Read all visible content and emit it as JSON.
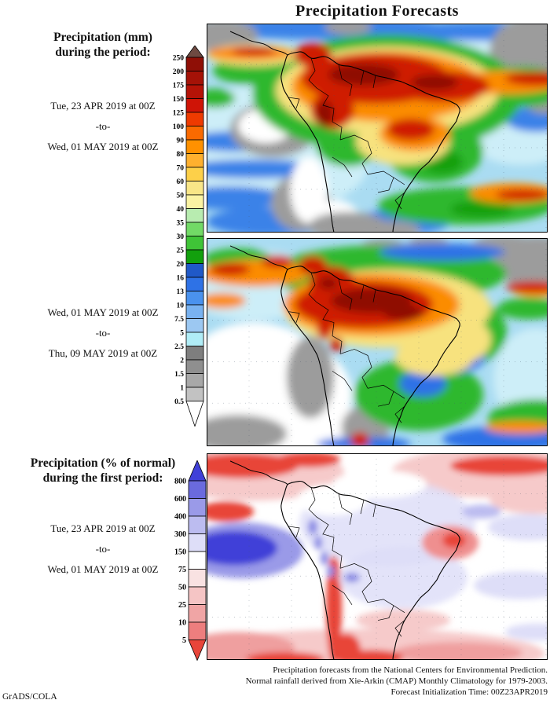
{
  "title": "Precipitation Forecasts",
  "attribution": "GrADS/COLA",
  "panel1": {
    "legend_title_line1": "Precipitation (mm)",
    "legend_title_line2": "during the period:",
    "period": {
      "start": "Tue, 23 APR 2019 at 00Z",
      "to": "-to-",
      "end": "Wed, 01 MAY 2019 at 00Z"
    }
  },
  "panel2": {
    "period": {
      "start": "Wed, 01 MAY 2019 at 00Z",
      "to": "-to-",
      "end": "Thu, 09 MAY 2019 at 00Z"
    }
  },
  "panel3": {
    "legend_title_line1": "Precipitation (% of normal)",
    "legend_title_line2": "during the first period:",
    "period": {
      "start": "Tue, 23 APR 2019 at 00Z",
      "to": "-to-",
      "end": "Wed, 01 MAY 2019 at 00Z"
    }
  },
  "colorbar_mm": {
    "labels": [
      "250",
      "200",
      "175",
      "150",
      "125",
      "100",
      "90",
      "80",
      "70",
      "60",
      "50",
      "40",
      "35",
      "30",
      "25",
      "20",
      "16",
      "13",
      "10",
      "7.5",
      "5",
      "2.5",
      "2",
      "1.5",
      "1",
      "0.5"
    ],
    "colors": [
      "#8f0f06",
      "#a51207",
      "#b51307",
      "#cf1406",
      "#ee3a00",
      "#fa6a00",
      "#ff9100",
      "#ffb02e",
      "#fdd049",
      "#f9e687",
      "#fbf3a3",
      "#b8ecb0",
      "#72da66",
      "#3fc437",
      "#12a00d",
      "#2059c8",
      "#2e72e6",
      "#4a92ee",
      "#79b2f0",
      "#9cc8f2",
      "#b0ecf6",
      "#7e7e7e",
      "#8f8f8f",
      "#a8a8a8",
      "#c2c2c2"
    ],
    "above_color": "#6e4a42",
    "below_color": "#ffffff"
  },
  "colorbar_pct": {
    "labels": [
      "800",
      "600",
      "400",
      "300",
      "150",
      "75",
      "50",
      "25",
      "10",
      "5"
    ],
    "colors": [
      "#6a6ade",
      "#9a9ae8",
      "#bcbcf0",
      "#dedef8",
      "#ffffff",
      "#f9e2e2",
      "#f5c5c5",
      "#f0a5a5",
      "#ed7e7e"
    ],
    "above_color": "#4040d8",
    "below_color": "#e8453a"
  },
  "footer": {
    "line1": "Precipitation forecasts from the National Centers for Environmental Prediction.",
    "line2": "Normal rainfall derived from Xie-Arkin (CMAP) Monthly Climatology for 1979-2003.",
    "line3": "Forecast Initialization Time: 00Z23APR2019"
  },
  "chart_data": [
    {
      "type": "heatmap",
      "title": "Precipitation (mm) — Tue, 23 APR 2019 00Z to Wed, 01 MAY 2019 00Z",
      "region": "South America and adjacent Pacific/Atlantic oceans",
      "units": "mm",
      "levels": [
        0.5,
        1,
        1.5,
        2,
        2.5,
        5,
        7.5,
        10,
        13,
        16,
        20,
        25,
        30,
        35,
        40,
        50,
        60,
        70,
        80,
        90,
        100,
        125,
        150,
        175,
        200,
        250
      ],
      "legend_position": "left",
      "notable_features": [
        "Very heavy totals (125 to >250 mm, red/dark red) over the Amazon basin, Colombia, the Guianas and the Atlantic ITCZ band extending to the right edge",
        "Moderate totals (20-60 mm, green) rimming the heavy-rain core, over southeast Brazil and along a south-Atlantic storm track with embedded 100-150 mm red streaks",
        "Light totals (2.5-16 mm, light blues) over open subtropical oceans",
        "Dry areas (<2.5 mm, gray/white) over the southeast Pacific, coastal Peru/Chile, Patagonia and a large gray zone in the northeast corner"
      ]
    },
    {
      "type": "heatmap",
      "title": "Precipitation (mm) — Wed, 01 MAY 2019 00Z to Thu, 09 MAY 2019 00Z",
      "region": "South America and adjacent Pacific/Atlantic oceans",
      "units": "mm",
      "levels": [
        0.5,
        1,
        1.5,
        2,
        2.5,
        5,
        7.5,
        10,
        13,
        16,
        20,
        25,
        30,
        35,
        40,
        50,
        60,
        70,
        80,
        90,
        100,
        125,
        150,
        175,
        200,
        250
      ],
      "legend_position": "left",
      "notable_features": [
        "Intense core (150 to >250 mm) over the western/central Amazon and Colombia/Venezuela",
        "Yellow/orange speckled 40-100 mm field over interior east Brazil with blue 10-20 mm patches near the southeast coast",
        "Extensive white/gray dry region (<2.5 mm) over the southeast Pacific, Chile, Argentina and Patagonia",
        "Orange/red streaks along the equatorial Atlantic and the far south Atlantic"
      ]
    },
    {
      "type": "heatmap",
      "title": "Precipitation (% of normal) — Tue, 23 APR 2019 00Z to Wed, 01 MAY 2019 00Z",
      "region": "South America and adjacent Pacific/Atlantic oceans",
      "units": "% of normal",
      "levels": [
        5,
        10,
        25,
        50,
        75,
        150,
        300,
        400,
        600,
        800
      ],
      "legend_position": "left",
      "notable_features": [
        "Near-normal (75-150%, white) over most of the continent with pale-lavender 150-300% patches over the Amazon and central Brazil",
        "Strongly above normal (>600%, deep blue) blob over the southeast Pacific near 30S",
        "Much below normal (<25%, red) bands along the northern ocean edges, the Chilean coast/Andes strip and the far-south ocean",
        "Below-normal red pocket over interior northeast Brazil"
      ]
    }
  ]
}
